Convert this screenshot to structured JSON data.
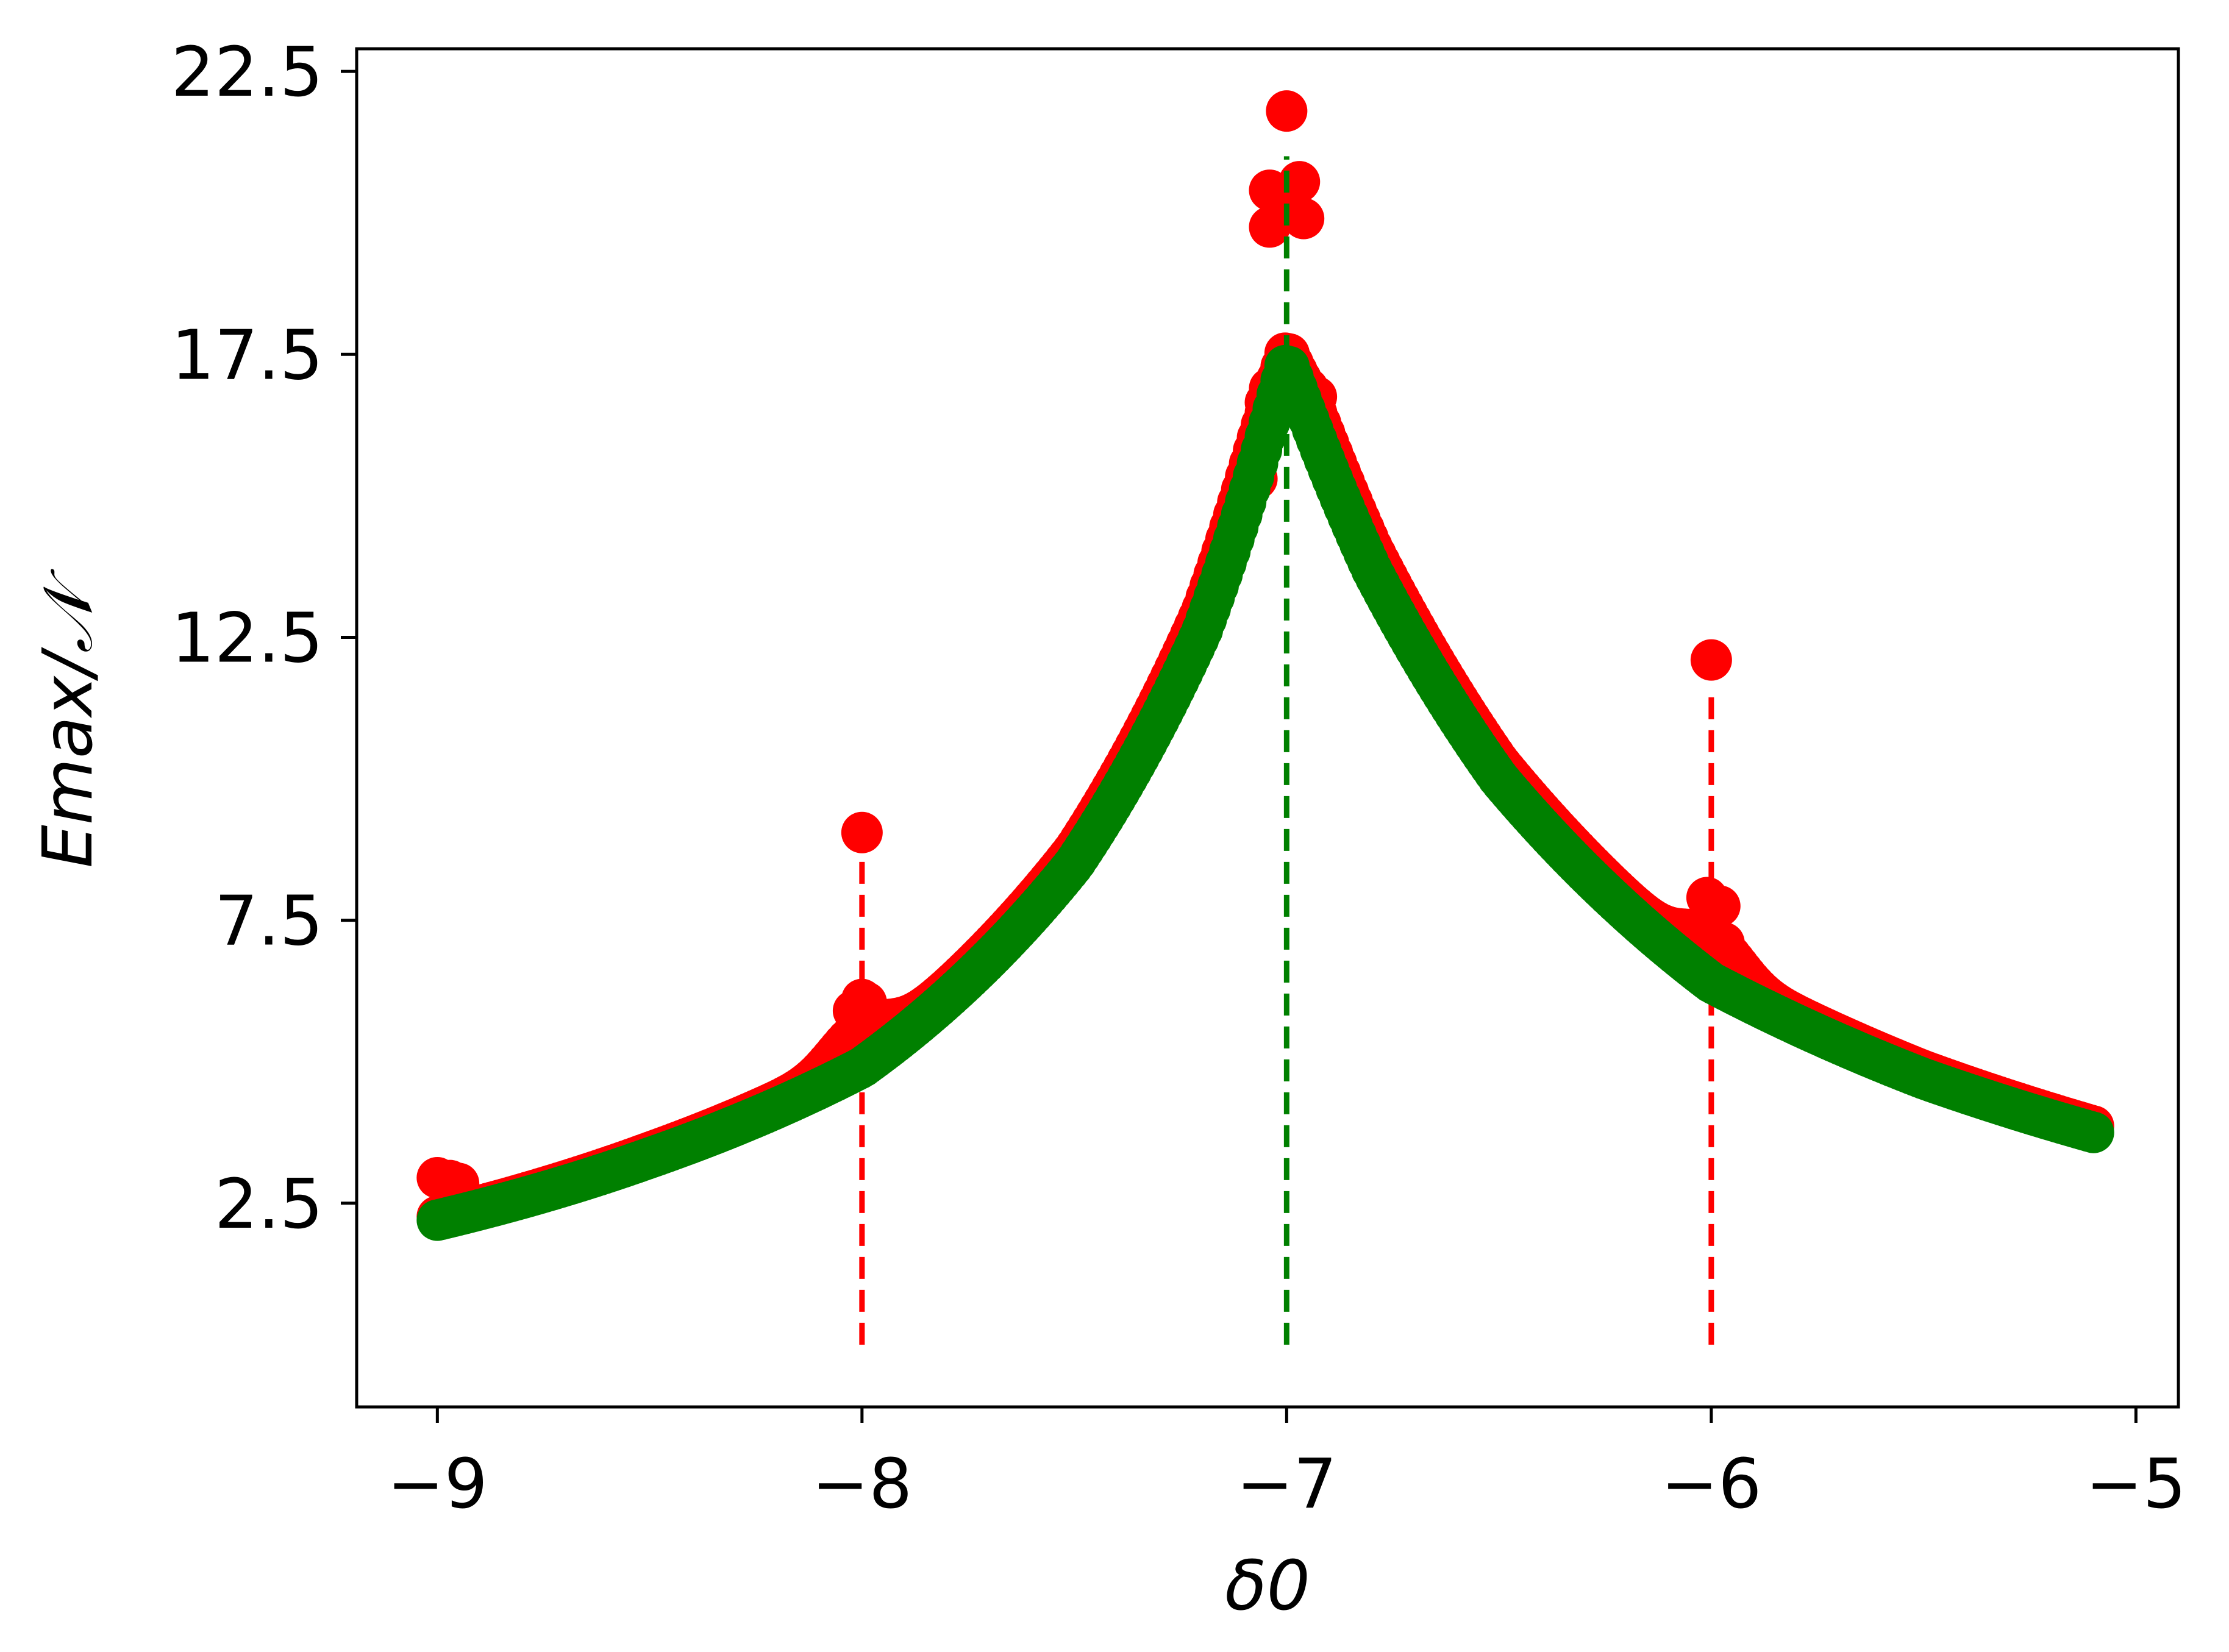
{
  "chart_data": {
    "type": "scatter",
    "title": "",
    "xlabel": "δ0",
    "ylabel": "Emax/𝒩",
    "xlim": [
      -9.19,
      -4.9
    ],
    "ylim": [
      -1.1,
      22.9
    ],
    "x_ticks": [
      -9,
      -8,
      -7,
      -6,
      -5
    ],
    "x_tick_labels": [
      "−9",
      "−8",
      "−7",
      "−6",
      "−5"
    ],
    "y_ticks": [
      2.5,
      7.5,
      12.5,
      17.5,
      22.5
    ],
    "y_tick_labels": [
      "2.5",
      "7.5",
      "12.5",
      "17.5",
      "22.5"
    ],
    "grid": false,
    "legend": "none",
    "series": [
      {
        "color": "#ff0000",
        "marker": "circle",
        "model": "envelope",
        "x_range": [
          -9.0,
          -5.1
        ],
        "resonances": [
          -8,
          -7,
          -6
        ],
        "outliers": [
          {
            "x": -9.0,
            "y": 2.95
          },
          {
            "x": -8.97,
            "y": 2.9
          },
          {
            "x": -8.95,
            "y": 2.85
          },
          {
            "x": -8.02,
            "y": 5.9
          },
          {
            "x": -8.0,
            "y": 6.1
          },
          {
            "x": -7.99,
            "y": 6.05
          },
          {
            "x": -8.0,
            "y": 9.05
          },
          {
            "x": -7.04,
            "y": 19.75
          },
          {
            "x": -7.04,
            "y": 20.4
          },
          {
            "x": -7.02,
            "y": 20.3
          },
          {
            "x": -7.0,
            "y": 21.8
          },
          {
            "x": -6.97,
            "y": 20.55
          },
          {
            "x": -6.96,
            "y": 19.9
          },
          {
            "x": -7.07,
            "y": 15.3
          },
          {
            "x": -7.06,
            "y": 16.2
          },
          {
            "x": -7.05,
            "y": 16.65
          },
          {
            "x": -7.04,
            "y": 16.9
          },
          {
            "x": -6.95,
            "y": 16.9
          },
          {
            "x": -6.93,
            "y": 16.75
          },
          {
            "x": -6.94,
            "y": 16.3
          },
          {
            "x": -6.92,
            "y": 15.9
          },
          {
            "x": -6.02,
            "y": 7.25
          },
          {
            "x": -6.01,
            "y": 7.9
          },
          {
            "x": -5.98,
            "y": 7.75
          },
          {
            "x": -5.97,
            "y": 7.1
          },
          {
            "x": -6.0,
            "y": 12.1
          }
        ]
      },
      {
        "color": "#008000",
        "marker": "circle",
        "model": "peak",
        "x_range": [
          -9.0,
          -5.1
        ],
        "peak_x": -7.0,
        "points": [
          {
            "x": -9.0,
            "y": 2.2
          },
          {
            "x": -8.5,
            "y": 3.3
          },
          {
            "x": -8.0,
            "y": 4.9
          },
          {
            "x": -7.5,
            "y": 8.5
          },
          {
            "x": -7.2,
            "y": 12.6
          },
          {
            "x": -7.0,
            "y": 17.4
          },
          {
            "x": -6.8,
            "y": 13.7
          },
          {
            "x": -6.5,
            "y": 10.0
          },
          {
            "x": -6.0,
            "y": 6.4
          },
          {
            "x": -5.5,
            "y": 4.7
          },
          {
            "x": -5.1,
            "y": 3.75
          }
        ]
      }
    ],
    "vlines": [
      {
        "x": -8.0,
        "y_from": 0.0,
        "y_to": 8.8,
        "color": "#ff0000",
        "style": "dashed"
      },
      {
        "x": -7.0,
        "y_from": 0.0,
        "y_to": 21.0,
        "color": "#008000",
        "style": "dashed"
      },
      {
        "x": -6.0,
        "y_from": 0.0,
        "y_to": 11.5,
        "color": "#ff0000",
        "style": "dashed"
      }
    ]
  }
}
